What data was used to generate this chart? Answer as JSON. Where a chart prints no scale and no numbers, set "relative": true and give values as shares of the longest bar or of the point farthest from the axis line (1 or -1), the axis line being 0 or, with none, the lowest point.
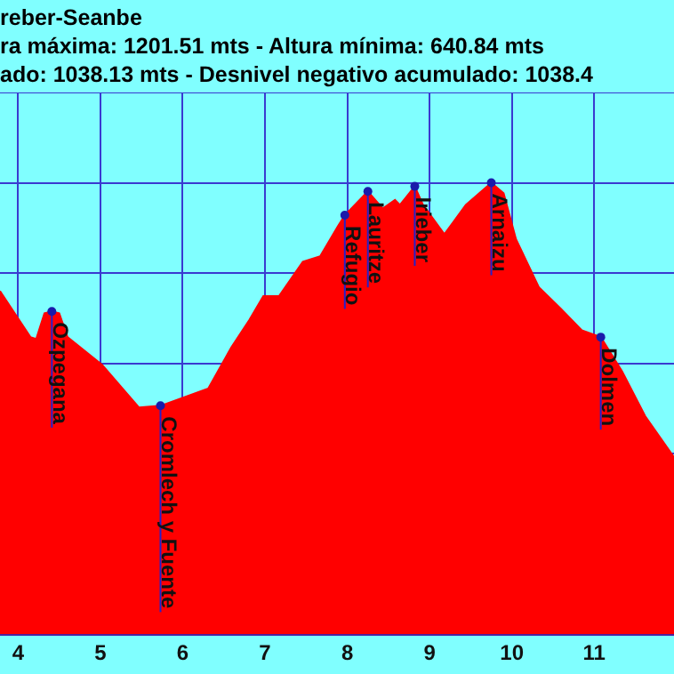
{
  "chart_data": {
    "type": "area",
    "title": "reber-Seanbe",
    "subtitle": "ra máxima: 1201.51 mts - Altura mínima: 640.84 mts\nado: 1038.13 mts - Desnivel negativo acumulado: 1038.4",
    "relative": true,
    "x": [
      3.78,
      4.15,
      4.22,
      4.32,
      4.41,
      4.5,
      4.6,
      5.02,
      5.47,
      5.73,
      6.31,
      6.59,
      6.81,
      6.98,
      7.17,
      7.46,
      7.67,
      7.89,
      7.97,
      8.25,
      8.43,
      8.58,
      8.64,
      8.82,
      8.92,
      9.18,
      9.44,
      9.75,
      9.9,
      10.05,
      10.33,
      10.59,
      10.85,
      11.08,
      11.34,
      11.62,
      11.97
    ],
    "series": [
      {
        "color": "#ff0000",
        "values": [
          0.76,
          0.658,
          0.654,
          0.711,
          0.715,
          0.711,
          0.658,
          0.597,
          0.502,
          0.506,
          0.544,
          0.635,
          0.696,
          0.749,
          0.749,
          0.825,
          0.837,
          0.905,
          0.928,
          0.981,
          0.943,
          0.962,
          0.951,
          0.992,
          0.951,
          0.886,
          0.951,
          1,
          0.977,
          0.875,
          0.768,
          0.722,
          0.673,
          0.658,
          0.582,
          0.483,
          0.392
        ]
      }
    ],
    "xlim": [
      3.78,
      11.97
    ],
    "xticks": [
      4,
      5,
      6,
      7,
      8,
      9,
      10,
      11
    ],
    "grid": true,
    "annotations": [
      {
        "text": "Ozpegana",
        "x": 4.41,
        "y": 0.715
      },
      {
        "text": "Cromlech y Fuente",
        "x": 5.73,
        "y": 0.506
      },
      {
        "text": "Refugio",
        "x": 7.97,
        "y": 0.928
      },
      {
        "text": "Lauritze",
        "x": 8.25,
        "y": 0.981
      },
      {
        "text": "Irieber",
        "x": 8.82,
        "y": 0.992
      },
      {
        "text": "Arnaizu",
        "x": 9.75,
        "y": 1
      },
      {
        "text": "Dolmen",
        "x": 11.08,
        "y": 0.658
      }
    ]
  }
}
